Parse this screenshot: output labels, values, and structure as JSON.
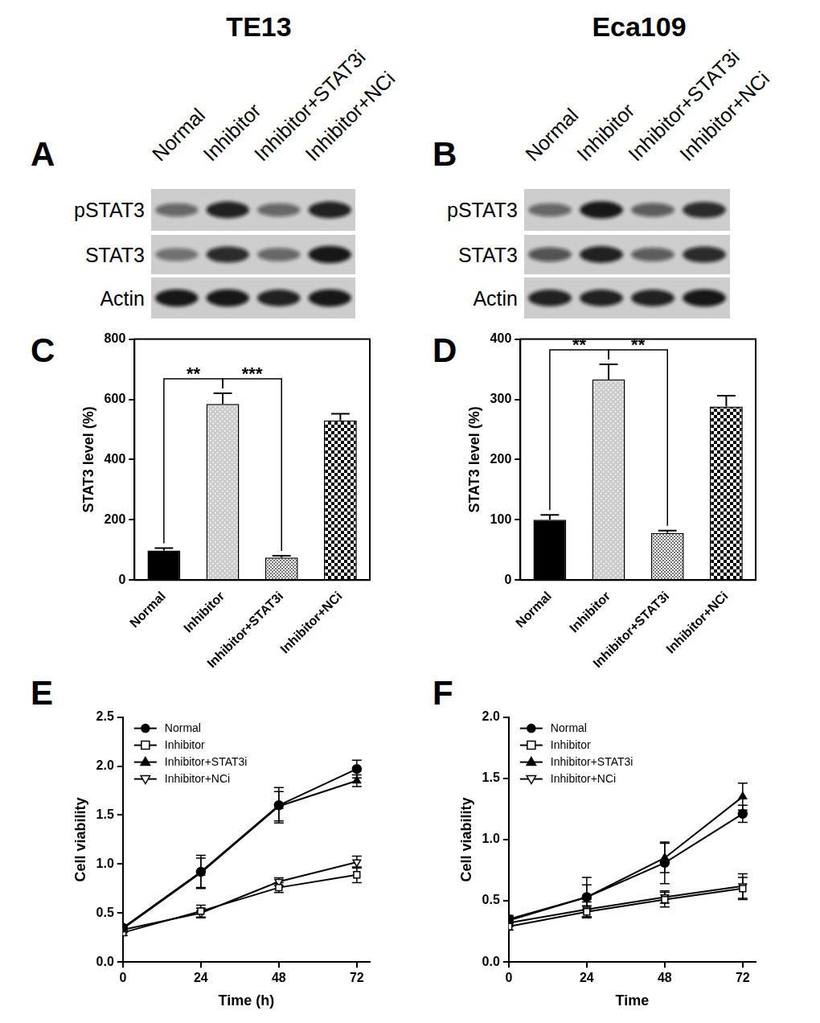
{
  "blots": [
    {
      "panel": "A",
      "title": "TE13",
      "lanes": [
        "Normal",
        "Inhibitor",
        "Inhibitor+STAT3i",
        "Inhibitor+NCi"
      ],
      "rows": [
        {
          "label": "pSTAT3",
          "intensity": [
            0.55,
            0.9,
            0.55,
            0.9
          ]
        },
        {
          "label": "STAT3",
          "intensity": [
            0.5,
            0.85,
            0.55,
            0.95
          ]
        },
        {
          "label": "Actin",
          "intensity": [
            0.95,
            0.95,
            0.9,
            0.95
          ]
        }
      ]
    },
    {
      "panel": "B",
      "title": "Eca109",
      "lanes": [
        "Normal",
        "Inhibitor",
        "Inhibitor+STAT3i",
        "Inhibitor+NCi"
      ],
      "rows": [
        {
          "label": "pSTAT3",
          "intensity": [
            0.55,
            0.95,
            0.6,
            0.85
          ]
        },
        {
          "label": "STAT3",
          "intensity": [
            0.65,
            0.9,
            0.6,
            0.85
          ]
        },
        {
          "label": "Actin",
          "intensity": [
            0.9,
            0.9,
            0.9,
            0.95
          ]
        }
      ]
    }
  ],
  "chart_data": [
    {
      "panel": "C",
      "type": "bar",
      "categories": [
        "Normal",
        "Inhibitor",
        "Inhibitor+STAT3i",
        "Inhibitor+NCi"
      ],
      "values": [
        98,
        585,
        75,
        530
      ],
      "errors": [
        8,
        35,
        6,
        22
      ],
      "colors": [
        "#000000",
        "#cccccc",
        "#777777",
        "#000000"
      ],
      "ylabel": "STAT3 level (%)",
      "ylim": [
        0,
        800
      ],
      "yticks": [
        0,
        200,
        400,
        600,
        800
      ],
      "annotations": [
        {
          "from": "Normal",
          "to": "Inhibitor",
          "label": "**"
        },
        {
          "from": "Inhibitor",
          "to": "Inhibitor+STAT3i",
          "label": "***"
        }
      ]
    },
    {
      "panel": "D",
      "type": "bar",
      "categories": [
        "Normal",
        "Inhibitor",
        "Inhibitor+STAT3i",
        "Inhibitor+NCi"
      ],
      "values": [
        100,
        333,
        78,
        288
      ],
      "errors": [
        8,
        25,
        4,
        18
      ],
      "colors": [
        "#000000",
        "#cccccc",
        "#777777",
        "#000000"
      ],
      "ylabel": "STAT3 level (%)",
      "ylim": [
        0,
        400
      ],
      "yticks": [
        0,
        100,
        200,
        300,
        400
      ],
      "annotations": [
        {
          "from": "Normal",
          "to": "Inhibitor",
          "label": "**"
        },
        {
          "from": "Inhibitor",
          "to": "Inhibitor+STAT3i",
          "label": "**"
        }
      ]
    },
    {
      "panel": "E",
      "type": "line",
      "x": [
        0,
        24,
        48,
        72
      ],
      "xlim": [
        0,
        76
      ],
      "xticks": [
        0,
        24,
        48,
        72
      ],
      "xlabel": "Time (h)",
      "ylabel": "Cell viability",
      "ylim": [
        0,
        2.5
      ],
      "yticks": [
        {
          "value": 0,
          "label": "0.0"
        },
        {
          "value": 0.5,
          "label": "0.5"
        },
        {
          "value": 1,
          "label": "1.0"
        },
        {
          "value": 1.5,
          "label": "1.5"
        },
        {
          "value": 2,
          "label": "2.0"
        },
        {
          "value": 2.5,
          "label": "2.5"
        }
      ],
      "legend": "upper left",
      "series": [
        {
          "name": "Normal",
          "color": "#000000",
          "marker": "filled-circle",
          "values": [
            0.35,
            0.92,
            1.6,
            1.97
          ],
          "errors": [
            0.03,
            0.17,
            0.18,
            0.09
          ]
        },
        {
          "name": "Inhibitor",
          "color": "#000000",
          "marker": "open-square",
          "values": [
            0.3,
            0.52,
            0.76,
            0.89
          ],
          "errors": [
            0.03,
            0.06,
            0.05,
            0.08
          ]
        },
        {
          "name": "Inhibitor+STAT3i",
          "color": "#000000",
          "marker": "filled-triangle",
          "values": [
            0.34,
            0.91,
            1.59,
            1.85
          ],
          "errors": [
            0.03,
            0.15,
            0.15,
            0.06
          ]
        },
        {
          "name": "Inhibitor+NCi",
          "color": "#000000",
          "marker": "open-triangle-down",
          "values": [
            0.33,
            0.5,
            0.82,
            1.02
          ],
          "errors": [
            0.03,
            0.05,
            0.04,
            0.06
          ]
        }
      ]
    },
    {
      "panel": "F",
      "type": "line",
      "x": [
        0,
        24,
        48,
        72
      ],
      "xlim": [
        0,
        76
      ],
      "xticks": [
        0,
        24,
        48,
        72
      ],
      "xlabel": "Time",
      "ylabel": "Cell viability",
      "ylim": [
        0,
        2
      ],
      "yticks": [
        {
          "value": 0,
          "label": "0.0"
        },
        {
          "value": 0.5,
          "label": "0.5"
        },
        {
          "value": 1,
          "label": "1.0"
        },
        {
          "value": 1.5,
          "label": "1.5"
        },
        {
          "value": 2,
          "label": "2.0"
        }
      ],
      "legend": "upper left",
      "series": [
        {
          "name": "Normal",
          "color": "#000000",
          "marker": "filled-circle",
          "values": [
            0.35,
            0.53,
            0.81,
            1.21
          ],
          "errors": [
            0.03,
            0.16,
            0.17,
            0.07
          ]
        },
        {
          "name": "Inhibitor",
          "color": "#000000",
          "marker": "open-square",
          "values": [
            0.29,
            0.41,
            0.51,
            0.6
          ],
          "errors": [
            0.03,
            0.05,
            0.06,
            0.09
          ]
        },
        {
          "name": "Inhibitor+STAT3i",
          "color": "#000000",
          "marker": "filled-triangle",
          "values": [
            0.34,
            0.53,
            0.85,
            1.35
          ],
          "errors": [
            0.03,
            0.1,
            0.12,
            0.11
          ]
        },
        {
          "name": "Inhibitor+NCi",
          "color": "#000000",
          "marker": "open-triangle-down",
          "values": [
            0.32,
            0.43,
            0.53,
            0.62
          ],
          "errors": [
            0.03,
            0.06,
            0.05,
            0.1
          ]
        }
      ]
    }
  ]
}
